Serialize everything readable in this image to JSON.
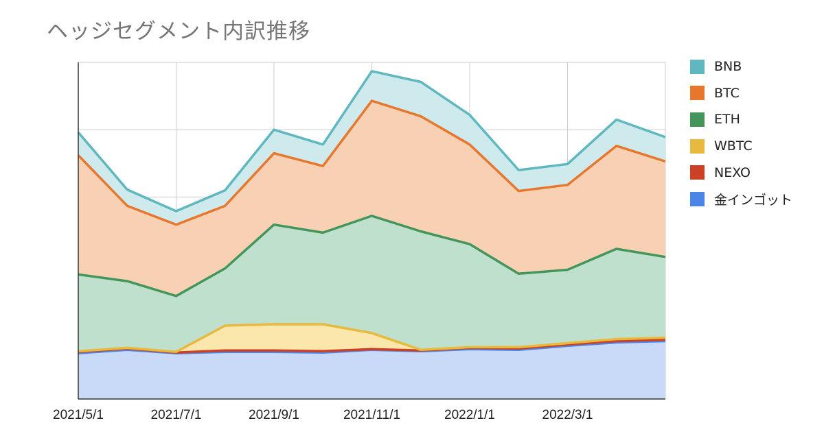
{
  "title": "ヘッジセグメント内訳推移",
  "chart_data": {
    "type": "area",
    "stacked": true,
    "title": "ヘッジセグメント内訳推移",
    "x": [
      "2021/5/1",
      "2021/6/1",
      "2021/7/1",
      "2021/8/1",
      "2021/9/1",
      "2021/10/1",
      "2021/11/1",
      "2021/12/1",
      "2022/1/1",
      "2022/2/1",
      "2022/3/1",
      "2022/4/1",
      "2022/5/1"
    ],
    "x_tick_labels": [
      "2021/5/1",
      "2021/7/1",
      "2021/9/1",
      "2021/11/1",
      "2022/1/1",
      "2022/3/1"
    ],
    "ylim": [
      0,
      50
    ],
    "y_tick_labels_visible": false,
    "grid": true,
    "legend_position": "right",
    "series": [
      {
        "name": "金インゴット",
        "color": "#4a86e8",
        "fill": "#c9d9f8",
        "values": [
          6.8,
          7.3,
          6.8,
          7.0,
          7.0,
          6.9,
          7.3,
          7.1,
          7.4,
          7.3,
          7.9,
          8.4,
          8.6
        ]
      },
      {
        "name": "NEXO",
        "color": "#cc4125",
        "fill": "#f2c4b9",
        "values": [
          0.2,
          0.2,
          0.1,
          0.2,
          0.2,
          0.2,
          0.1,
          0.1,
          0.2,
          0.2,
          0.2,
          0.2,
          0.2
        ]
      },
      {
        "name": "WBTC",
        "color": "#e8b93f",
        "fill": "#fbe6ab",
        "values": [
          0.1,
          0.1,
          0.1,
          3.7,
          3.9,
          4.0,
          2.4,
          0.1,
          0.1,
          0.2,
          0.2,
          0.3,
          0.3
        ]
      },
      {
        "name": "ETH",
        "color": "#43955a",
        "fill": "#bfe0cc",
        "values": [
          11.4,
          9.9,
          8.3,
          8.5,
          14.8,
          13.6,
          17.4,
          17.6,
          15.3,
          10.9,
          10.9,
          13.4,
          12.0
        ]
      },
      {
        "name": "BTC",
        "color": "#e8772e",
        "fill": "#f8d1b5",
        "values": [
          17.7,
          11.2,
          10.6,
          9.3,
          10.6,
          9.9,
          17.1,
          17.1,
          14.8,
          12.3,
          12.6,
          15.3,
          14.2
        ]
      },
      {
        "name": "BNB",
        "color": "#5fb7bf",
        "fill": "#cfeaec",
        "values": [
          3.4,
          2.4,
          2.0,
          2.3,
          3.5,
          3.2,
          4.4,
          5.1,
          4.4,
          3.1,
          3.1,
          3.9,
          3.6
        ]
      }
    ]
  }
}
